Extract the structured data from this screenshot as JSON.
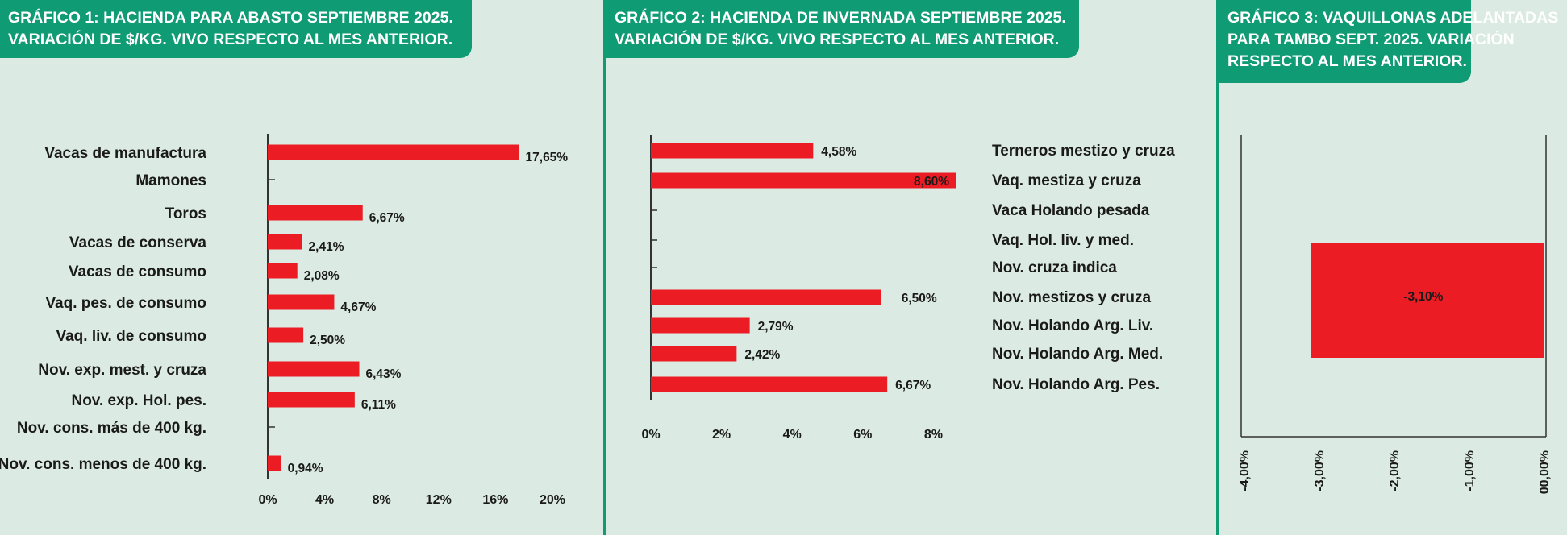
{
  "colors": {
    "bar": "#ec1c24",
    "header": "#0f9b74",
    "background": "#dbeae2",
    "axis": "#333333"
  },
  "chart_data": [
    {
      "type": "bar",
      "orientation": "horizontal",
      "title_line1": "GRÁFICO 1: HACIENDA PARA ABASTO SEPTIEMBRE 2025.",
      "title_line2": "VARIACIÓN DE $/KG. VIVO RESPECTO AL MES ANTERIOR.",
      "categories": [
        "Vacas de manufactura",
        "Mamones",
        "Toros",
        "Vacas de conserva",
        "Vacas de consumo",
        "Vaq. pes. de consumo",
        "Vaq. liv. de consumo",
        "Nov. exp. mest. y cruza",
        "Nov. exp. Hol. pes.",
        "Nov. cons. más de 400 kg.",
        "Nov. cons. menos de 400 kg."
      ],
      "values": [
        17.65,
        null,
        6.67,
        2.41,
        2.08,
        4.67,
        2.5,
        6.43,
        6.11,
        null,
        0.94
      ],
      "value_labels": [
        "17,65%",
        "",
        "6,67%",
        "2,41%",
        "2,08%",
        "4,67%",
        "2,50%",
        "6,43%",
        "6,11%",
        "",
        "0,94%"
      ],
      "xlim": [
        0,
        20
      ],
      "xticks": [
        0,
        4,
        8,
        12,
        16,
        20
      ],
      "xtick_labels": [
        "0%",
        "4%",
        "8%",
        "12%",
        "16%",
        "20%"
      ],
      "grid": false
    },
    {
      "type": "bar",
      "orientation": "horizontal",
      "title_line1": "GRÁFICO 2: HACIENDA DE INVERNADA SEPTIEMBRE 2025.",
      "title_line2": "VARIACIÓN DE $/KG. VIVO RESPECTO AL MES ANTERIOR.",
      "categories": [
        "Terneros mestizo y cruza",
        "Vaq. mestiza y cruza",
        "Vaca Holando pesada",
        "Vaq. Hol. liv. y med.",
        "Nov. cruza indica",
        "Nov. mestizos y cruza",
        "Nov. Holando Arg. Liv.",
        "Nov. Holando Arg. Med.",
        "Nov. Holando Arg. Pes."
      ],
      "values": [
        4.58,
        8.6,
        null,
        null,
        null,
        6.5,
        2.79,
        2.42,
        6.67
      ],
      "value_labels": [
        "4,58%",
        "8,60%",
        "",
        "",
        "",
        "6,50%",
        "2,79%",
        "2,42%",
        "6,67%"
      ],
      "xlim": [
        0,
        8.6
      ],
      "xticks": [
        0,
        2,
        4,
        6,
        8
      ],
      "xtick_labels": [
        "0%",
        "2%",
        "4%",
        "6%",
        "8%"
      ],
      "grid": false
    },
    {
      "type": "bar",
      "orientation": "horizontal",
      "title_line1": "GRÁFICO 3: VAQUILLONAS ADELANTADAS",
      "title_line2": "PARA TAMBO SEPT. 2025. VARIACIÓN",
      "title_line3": "RESPECTO AL MES ANTERIOR.",
      "categories": [
        ""
      ],
      "values": [
        -3.1
      ],
      "value_labels": [
        "-3,10%"
      ],
      "xlim": [
        -4,
        0
      ],
      "xticks": [
        -4,
        -3,
        -2,
        -1,
        0
      ],
      "xtick_labels": [
        "-4,00%",
        "-3,00%",
        "-2,00%",
        "-1,00%",
        "00,00%"
      ],
      "grid": false
    }
  ]
}
